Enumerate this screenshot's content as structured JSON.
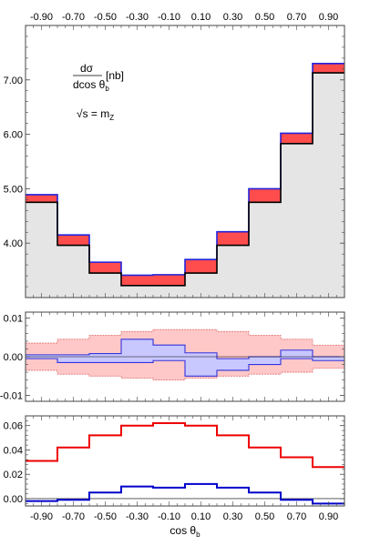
{
  "chart_data": [
    {
      "type": "histogram",
      "panel": "cross-section",
      "edges": [
        -1.0,
        -0.8,
        -0.6,
        -0.4,
        -0.2,
        0.0,
        0.2,
        0.4,
        0.6,
        0.8,
        1.0
      ],
      "x_tick_labels": [
        "-0.90",
        "-0.70",
        "-0.50",
        "-0.30",
        "-0.10",
        "0.10",
        "0.30",
        "0.50",
        "0.70",
        "0.90"
      ],
      "x_ticks_at": [
        -0.9,
        -0.7,
        -0.5,
        -0.3,
        -0.1,
        0.1,
        0.3,
        0.5,
        0.7,
        0.9
      ],
      "y_tick_labels": [
        "4.00",
        "5.00",
        "6.00",
        "7.00"
      ],
      "y_ticks_at": [
        4,
        5,
        6,
        7
      ],
      "ylim": [
        3.0,
        8.0
      ],
      "annotation_numerator": "dσ",
      "annotation_denominator": "dcos θ",
      "annotation_denominator_sub": "b",
      "annotation_unit": "[nb]",
      "annotation_energy": "√s = m",
      "annotation_energy_sub": "Z",
      "series": [
        {
          "role": "lower",
          "values": [
            4.75,
            3.96,
            3.45,
            3.22,
            3.22,
            3.45,
            3.96,
            4.75,
            5.83,
            7.13
          ],
          "color": "#000000",
          "fill": "#e5e5e5"
        },
        {
          "role": "upper",
          "values": [
            4.89,
            4.15,
            3.65,
            3.41,
            3.42,
            3.7,
            4.21,
            5.0,
            6.02,
            7.3
          ],
          "color": "#2222dd",
          "fill": "#ff4d4d"
        }
      ]
    },
    {
      "type": "histogram",
      "panel": "relative-uncertainty",
      "edges": [
        -1.0,
        -0.8,
        -0.6,
        -0.4,
        -0.2,
        0.0,
        0.2,
        0.4,
        0.6,
        0.8,
        1.0
      ],
      "y_tick_labels": [
        "-0.01",
        "0.00",
        "0.01"
      ],
      "y_ticks_at": [
        -0.01,
        0.0,
        0.01
      ],
      "ylim": [
        -0.0115,
        0.0115
      ],
      "series": [
        {
          "role": "red-band-upper",
          "values": [
            0.0035,
            0.0045,
            0.0055,
            0.0065,
            0.007,
            0.007,
            0.0065,
            0.0055,
            0.0045,
            0.003
          ],
          "color": "#e07070",
          "fill": "#ffc8c8"
        },
        {
          "role": "red-band-lower",
          "values": [
            -0.0035,
            -0.0045,
            -0.005,
            -0.0055,
            -0.006,
            -0.0055,
            -0.005,
            -0.0045,
            -0.004,
            -0.003
          ],
          "color": "#e07070",
          "fill": "#ffc8c8"
        },
        {
          "role": "blue-band-upper",
          "values": [
            0.0005,
            0.0005,
            0.0008,
            0.0045,
            0.003,
            0.001,
            -0.0005,
            0.0,
            0.0017,
            0.0
          ],
          "color": "#3333dd",
          "fill": "#c8c8ff"
        },
        {
          "role": "blue-band-lower",
          "values": [
            -0.0005,
            -0.0015,
            -0.0015,
            -0.0015,
            -0.001,
            -0.005,
            -0.0035,
            -0.002,
            -0.0005,
            -0.001
          ],
          "color": "#3333dd",
          "fill": "#c8c8ff"
        }
      ]
    },
    {
      "type": "histogram",
      "panel": "corrections",
      "edges": [
        -1.0,
        -0.8,
        -0.6,
        -0.4,
        -0.2,
        0.0,
        0.2,
        0.4,
        0.6,
        0.8,
        1.0
      ],
      "x_tick_labels": [
        "-0.90",
        "-0.70",
        "-0.50",
        "-0.30",
        "-0.10",
        "0.10",
        "0.30",
        "0.50",
        "0.70",
        "0.90"
      ],
      "x_ticks_at": [
        -0.9,
        -0.7,
        -0.5,
        -0.3,
        -0.1,
        0.1,
        0.3,
        0.5,
        0.7,
        0.9
      ],
      "y_tick_labels": [
        "0.00",
        "0.02",
        "0.04",
        "0.06"
      ],
      "y_ticks_at": [
        0.0,
        0.02,
        0.04,
        0.06
      ],
      "ylim": [
        -0.006,
        0.068
      ],
      "xlabel": "cos θ",
      "xlabel_sub": "b",
      "series": [
        {
          "role": "red",
          "values": [
            0.031,
            0.042,
            0.052,
            0.06,
            0.062,
            0.06,
            0.052,
            0.042,
            0.034,
            0.026
          ],
          "color": "#ee0000"
        },
        {
          "role": "blue",
          "values": [
            -0.002,
            -0.001,
            0.005,
            0.01,
            0.009,
            0.012,
            0.009,
            0.005,
            -0.001,
            -0.004
          ],
          "color": "#0000cc"
        }
      ]
    }
  ]
}
